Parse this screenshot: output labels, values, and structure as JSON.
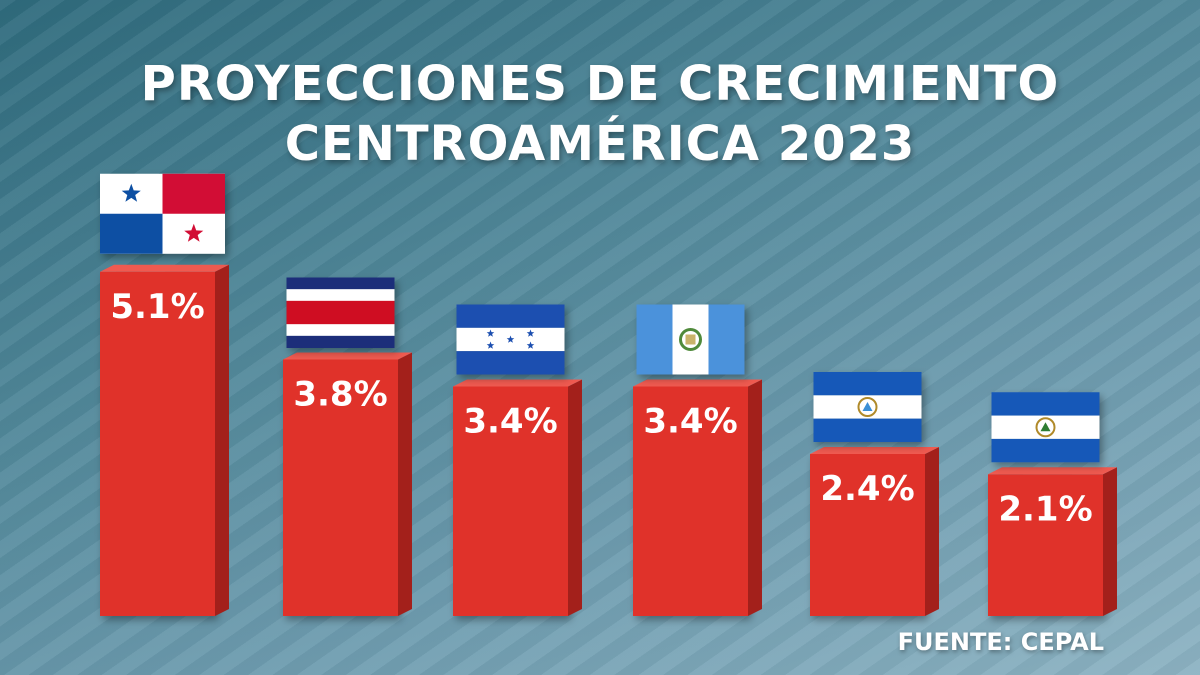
{
  "title_line1": "PROYECCIONES DE CRECIMIENTO",
  "title_line2": "CENTROAMÉRICA 2023",
  "source": "FUENTE: CEPAL",
  "colors": {
    "bar": "#e0312a",
    "bar_side": "#a3201b",
    "bar_top": "#ef5a50",
    "text": "#ffffff"
  },
  "chart_data": {
    "type": "bar",
    "categories": [
      "Panamá",
      "Costa Rica",
      "Honduras",
      "Guatemala",
      "Nicaragua",
      "El Salvador"
    ],
    "flags": [
      "panama-flag-icon",
      "costa-rica-flag-icon",
      "honduras-flag-icon",
      "guatemala-flag-icon",
      "nicaragua-flag-icon",
      "el-salvador-flag-icon"
    ],
    "values": [
      5.1,
      3.8,
      3.4,
      3.4,
      2.4,
      2.1
    ],
    "labels": [
      "5.1%",
      "3.8%",
      "3.4%",
      "3.4%",
      "2.4%",
      "2.1%"
    ],
    "unit": "%",
    "ylim": [
      0,
      5.5
    ],
    "grid": false,
    "legend": "none"
  }
}
